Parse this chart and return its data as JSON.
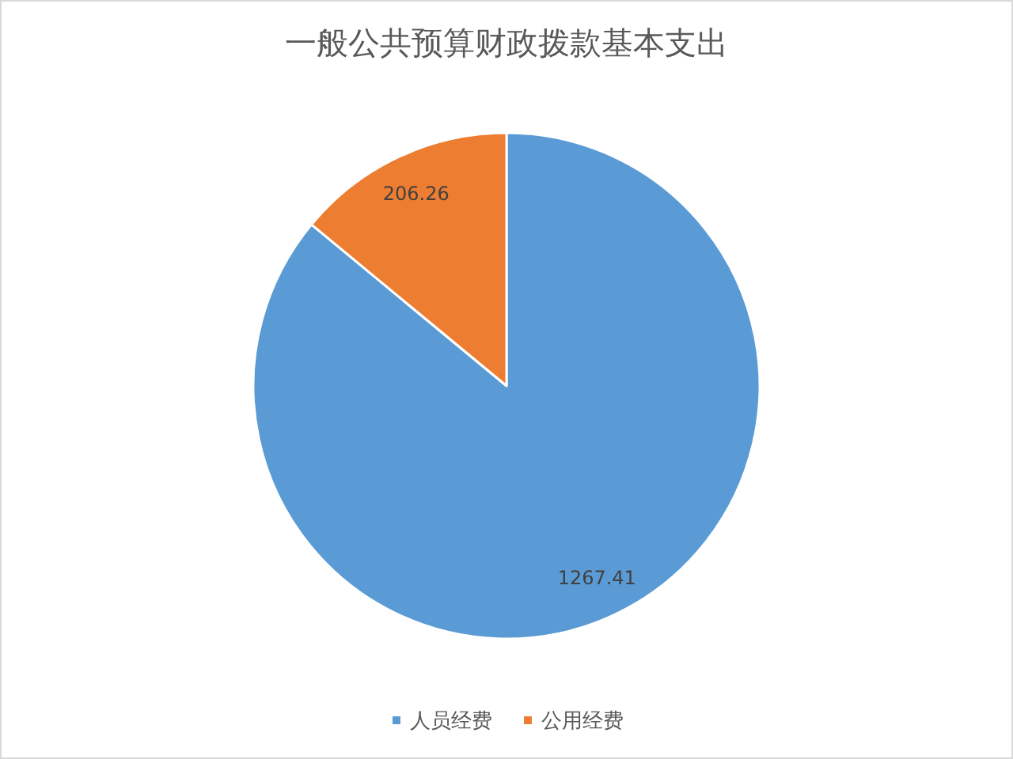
{
  "chart_data": {
    "type": "pie",
    "title": "一般公共预算财政拨款基本支出",
    "categories": [
      "人员经费",
      "公用经费"
    ],
    "values": [
      1267.41,
      206.26
    ],
    "colors": [
      "#5b9bd5",
      "#ed7d31"
    ],
    "data_labels": true,
    "legend": "bottom"
  }
}
